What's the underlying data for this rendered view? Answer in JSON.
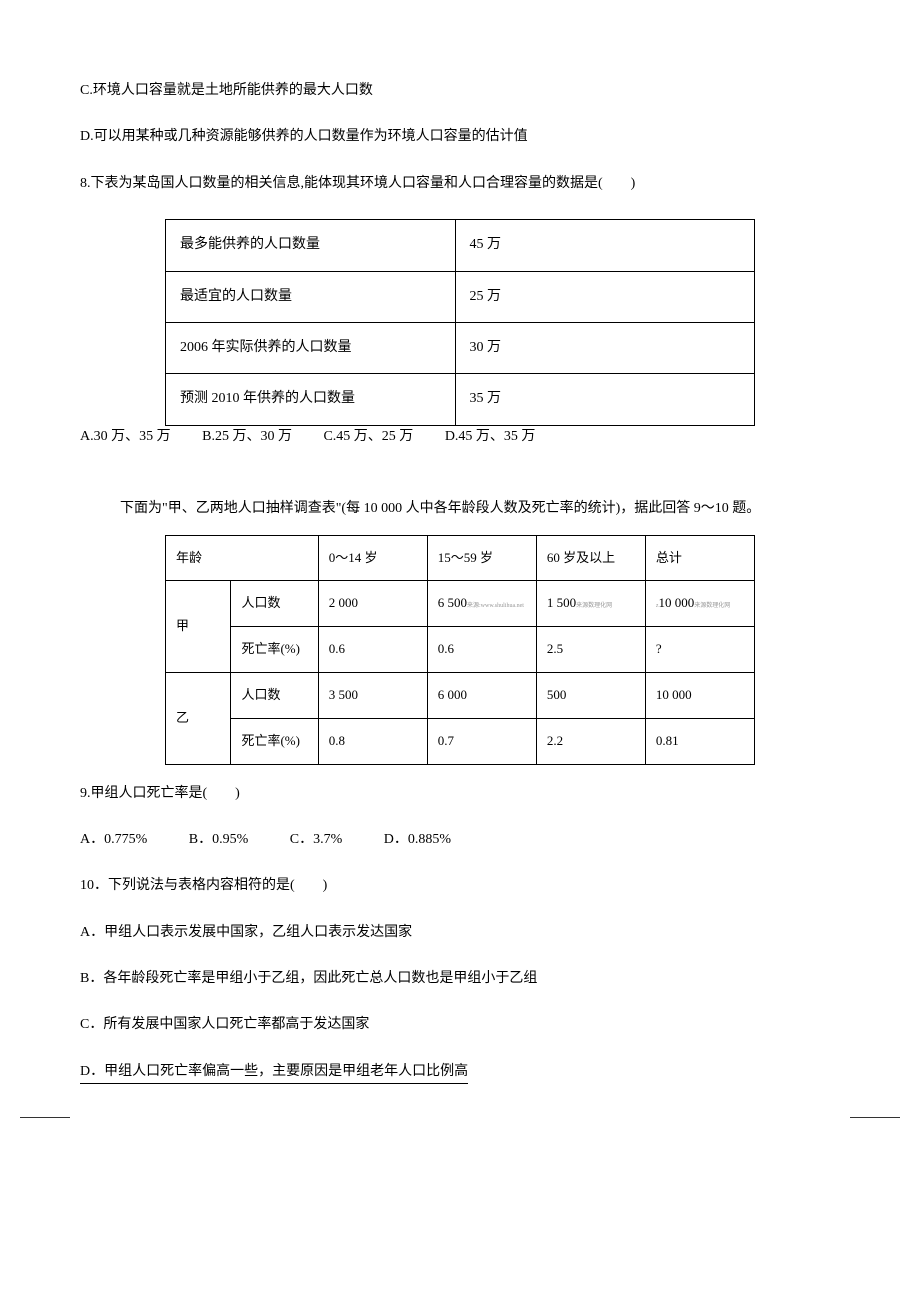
{
  "text_c": "C.环境人口容量就是土地所能供养的最大人口数",
  "text_d": "D.可以用某种或几种资源能够供养的人口数量作为环境人口容量的估计值",
  "q8": "8.下表为某岛国人口数量的相关信息,能体现其环境人口容量和人口合理容量的数据是(　　)",
  "table1": {
    "rows": [
      [
        "最多能供养的人口数量",
        "45 万"
      ],
      [
        "最适宜的人口数量",
        "25 万"
      ],
      [
        "2006 年实际供养的人口数量",
        "30 万"
      ],
      [
        "预测 2010 年供养的人口数量",
        "35 万"
      ]
    ]
  },
  "q8_opts": {
    "a": "A.30 万、35 万",
    "b": "B.25 万、30 万",
    "c": "C.45 万、25 万",
    "d": "D.45 万、35 万"
  },
  "intro": "下面为\"甲、乙两地人口抽样调查表\"(每 10 000 人中各年龄段人数及死亡率的统计)，据此回答 9～10 题。",
  "table2": {
    "header": [
      "年龄",
      "0～14 岁",
      "15～59 岁",
      "60 岁及以上",
      "总计"
    ],
    "jia_label": "甲",
    "yi_label": "乙",
    "pop_label": "人口数",
    "death_label": "死亡率(%)",
    "jia_pop": [
      "2 000",
      "6 500",
      "1 500",
      "10 000"
    ],
    "jia_death": [
      "0.6",
      "0.6",
      "2.5",
      "?"
    ],
    "yi_pop": [
      "3 500",
      "6 000",
      "500",
      "10 000"
    ],
    "yi_death": [
      "0.8",
      "0.7",
      "2.2",
      "0.81"
    ]
  },
  "q9": "9.甲组人口死亡率是(　　)",
  "q9_opts": {
    "a": "A．0.775%",
    "b": "B．0.95%",
    "c": "C．3.7%",
    "d": "D．0.885%"
  },
  "q10": "10．下列说法与表格内容相符的是(　　)",
  "q10_a": "A．甲组人口表示发展中国家，乙组人口表示发达国家",
  "q10_b": "B．各年龄段死亡率是甲组小于乙组，因此死亡总人口数也是甲组小于乙组",
  "q10_c": "C．所有发展中国家人口死亡率都高于发达国家",
  "q10_d": "D．甲组人口死亡率偏高一些，主要原因是甲组老年人口比例高"
}
